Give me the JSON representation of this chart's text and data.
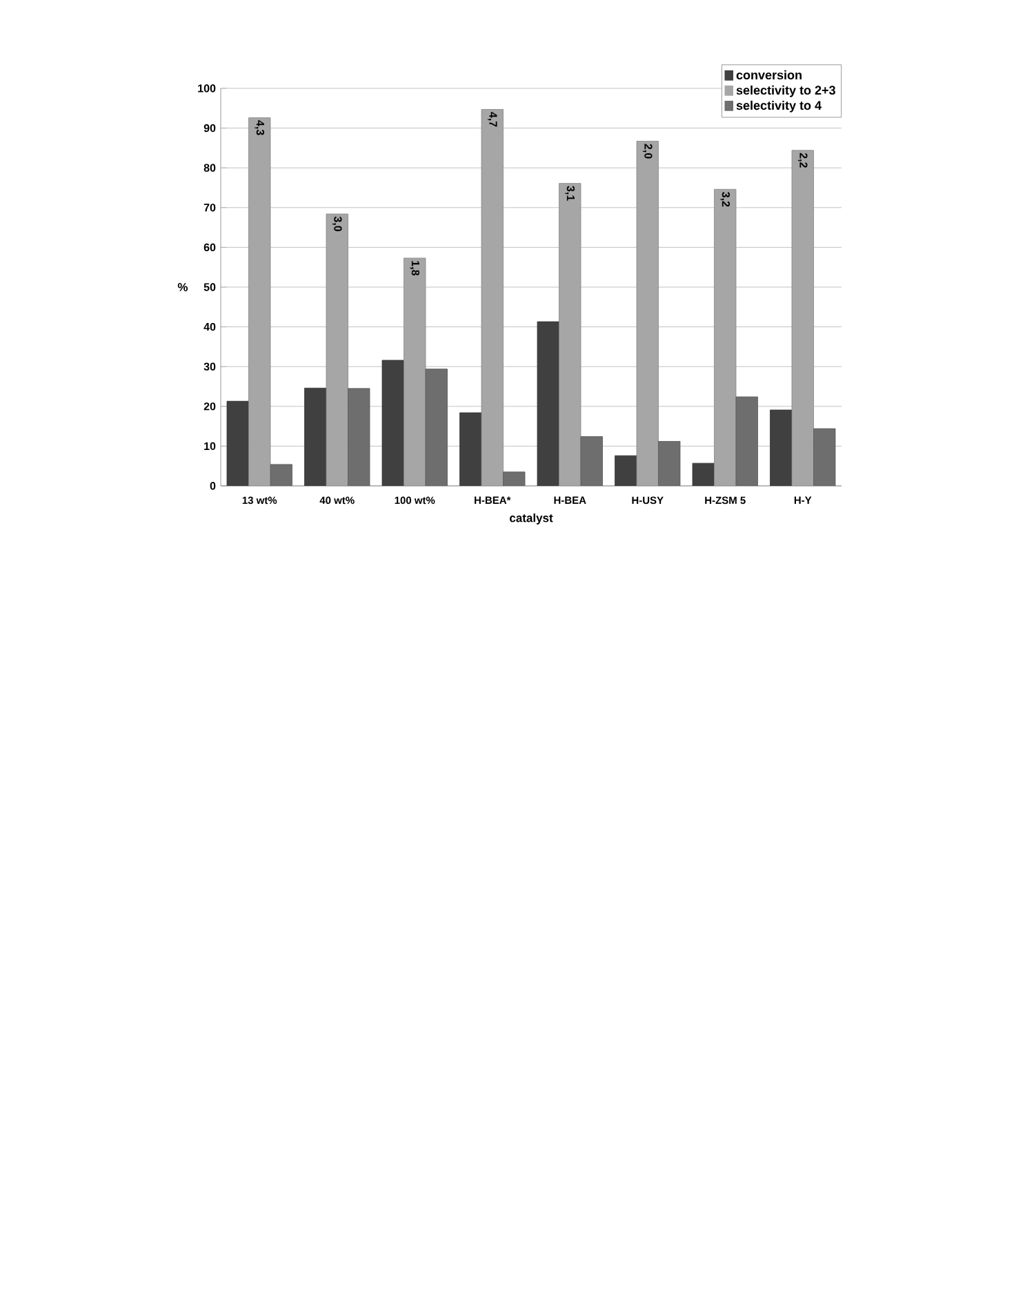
{
  "chart_data": {
    "type": "bar",
    "xlabel": "catalyst",
    "ylabel": "%",
    "categories": [
      "13 wt%",
      "40 wt%",
      "100 wt%",
      "H-BEA*",
      "H-BEA",
      "H-USY",
      "H-ZSM 5",
      "H-Y"
    ],
    "series": [
      {
        "name": "conversion",
        "color": "#404040",
        "values": [
          21.3,
          24.6,
          31.6,
          18.4,
          41.3,
          7.6,
          5.7,
          19.1
        ]
      },
      {
        "name": "selectivity to 2+3",
        "color": "#a6a6a6",
        "values": [
          92.6,
          68.4,
          57.3,
          94.7,
          76.1,
          86.7,
          74.6,
          84.4
        ]
      },
      {
        "name": "selectivity to 4",
        "color": "#6e6e6e",
        "values": [
          5.4,
          24.5,
          29.4,
          3.5,
          12.4,
          11.2,
          22.4,
          14.4
        ]
      }
    ],
    "annotations": [
      {
        "text": "4,3",
        "x": "13 wt%",
        "y": 92.6
      },
      {
        "text": "3,0",
        "x": "40 wt%",
        "y": 68.4
      },
      {
        "text": "1,8",
        "x": "100 wt%",
        "y": 57.3
      },
      {
        "text": "4,7",
        "x": "H-BEA*",
        "y": 94.7
      },
      {
        "text": "3,1",
        "x": "H-BEA",
        "y": 76.1
      },
      {
        "text": "2,0",
        "x": "H-USY",
        "y": 86.7
      },
      {
        "text": "3,2",
        "x": "H-ZSM 5",
        "y": 74.6
      },
      {
        "text": "2,2",
        "x": "H-Y",
        "y": 84.4
      }
    ],
    "ylim": [
      0,
      100
    ],
    "yticks": [
      0,
      10,
      20,
      30,
      40,
      50,
      60,
      70,
      80,
      90,
      100
    ],
    "grid": "y",
    "legend": "top right"
  }
}
